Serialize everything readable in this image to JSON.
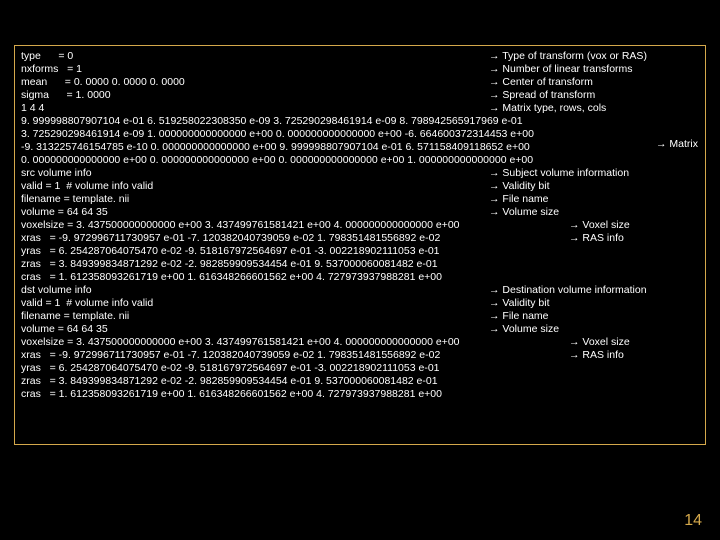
{
  "header": {
    "lines": [
      {
        "left": "type      = 0",
        "right": "→ Type of transform (vox or RAS)"
      },
      {
        "left": "nxforms   = 1",
        "right": "→ Number of linear transforms"
      },
      {
        "left": "mean      = 0. 0000 0. 0000 0. 0000",
        "right": "→ Center of transform"
      },
      {
        "left": "sigma      = 1. 0000",
        "right": "→ Spread of transform"
      },
      {
        "left": "1 4 4",
        "right": "→ Matrix type, rows, cols"
      }
    ]
  },
  "matrix_lines": [
    "9. 999998807907104 e-01 6. 519258022308350 e-09 3. 725290298461914 e-09 8. 798942565917969 e-01",
    "3. 725290298461914 e-09 1. 000000000000000 e+00 0. 000000000000000 e+00 -6. 664600372314453 e+00",
    "-9. 313225746154785 e-10 0. 000000000000000 e+00 9. 999998807907104 e-01 6. 571158409118652 e+00",
    "0. 000000000000000 e+00 0. 000000000000000 e+00 0. 000000000000000 e+00 1. 000000000000000 e+00"
  ],
  "matrix_right": "→ Matrix",
  "src": {
    "lines": [
      {
        "left": "src volume info",
        "right": "→ Subject volume information"
      },
      {
        "left": "valid = 1  # volume info valid",
        "right": "→ Validity bit"
      },
      {
        "left": "filename = template. nii",
        "right": "→ File name"
      },
      {
        "left": "volume = 64 64 35",
        "right": "→ Volume size"
      }
    ]
  },
  "src_vox": {
    "left": "voxelsize = 3. 437500000000000 e+00 3. 437499761581421 e+00 4. 000000000000000 e+00",
    "right": "→ Voxel size"
  },
  "src_ras": {
    "first": {
      "left": "xras   = -9. 972996711730957 e-01 -7. 120382040739059 e-02 1. 798351481556892 e-02",
      "right": "→ RAS info"
    },
    "rest": [
      "yras   = 6. 254287064075470 e-02 -9. 518167972564697 e-01 -3. 002218902111053 e-01",
      "zras   = 3. 849399834871292 e-02 -2. 982859909534454 e-01 9. 537000060081482 e-01",
      "cras   = 1. 612358093261719 e+00 1. 616348266601562 e+00 4. 727973937988281 e+00"
    ]
  },
  "dst": {
    "lines": [
      {
        "left": "dst volume info",
        "right": "→ Destination volume information"
      },
      {
        "left": "valid = 1  # volume info valid",
        "right": "→ Validity bit"
      },
      {
        "left": "filename = template. nii",
        "right": "→ File name"
      },
      {
        "left": "volume = 64 64 35",
        "right": "→ Volume size"
      }
    ]
  },
  "dst_vox": {
    "left": "voxelsize = 3. 437500000000000 e+00 3. 437499761581421 e+00 4. 000000000000000 e+00",
    "right": "→ Voxel size"
  },
  "dst_ras": {
    "first": {
      "left": "xras   = -9. 972996711730957 e-01 -7. 120382040739059 e-02 1. 798351481556892 e-02",
      "right": "→ RAS info"
    },
    "rest": [
      "yras   = 6. 254287064075470 e-02 -9. 518167972564697 e-01 -3. 002218902111053 e-01",
      "zras   = 3. 849399834871292 e-02 -2. 982859909534454 e-01 9. 537000060081482 e-01",
      "cras   = 1. 612358093261719 e+00 1. 616348266601562 e+00 4. 727973937988281 e+00"
    ]
  },
  "page_number": "14"
}
